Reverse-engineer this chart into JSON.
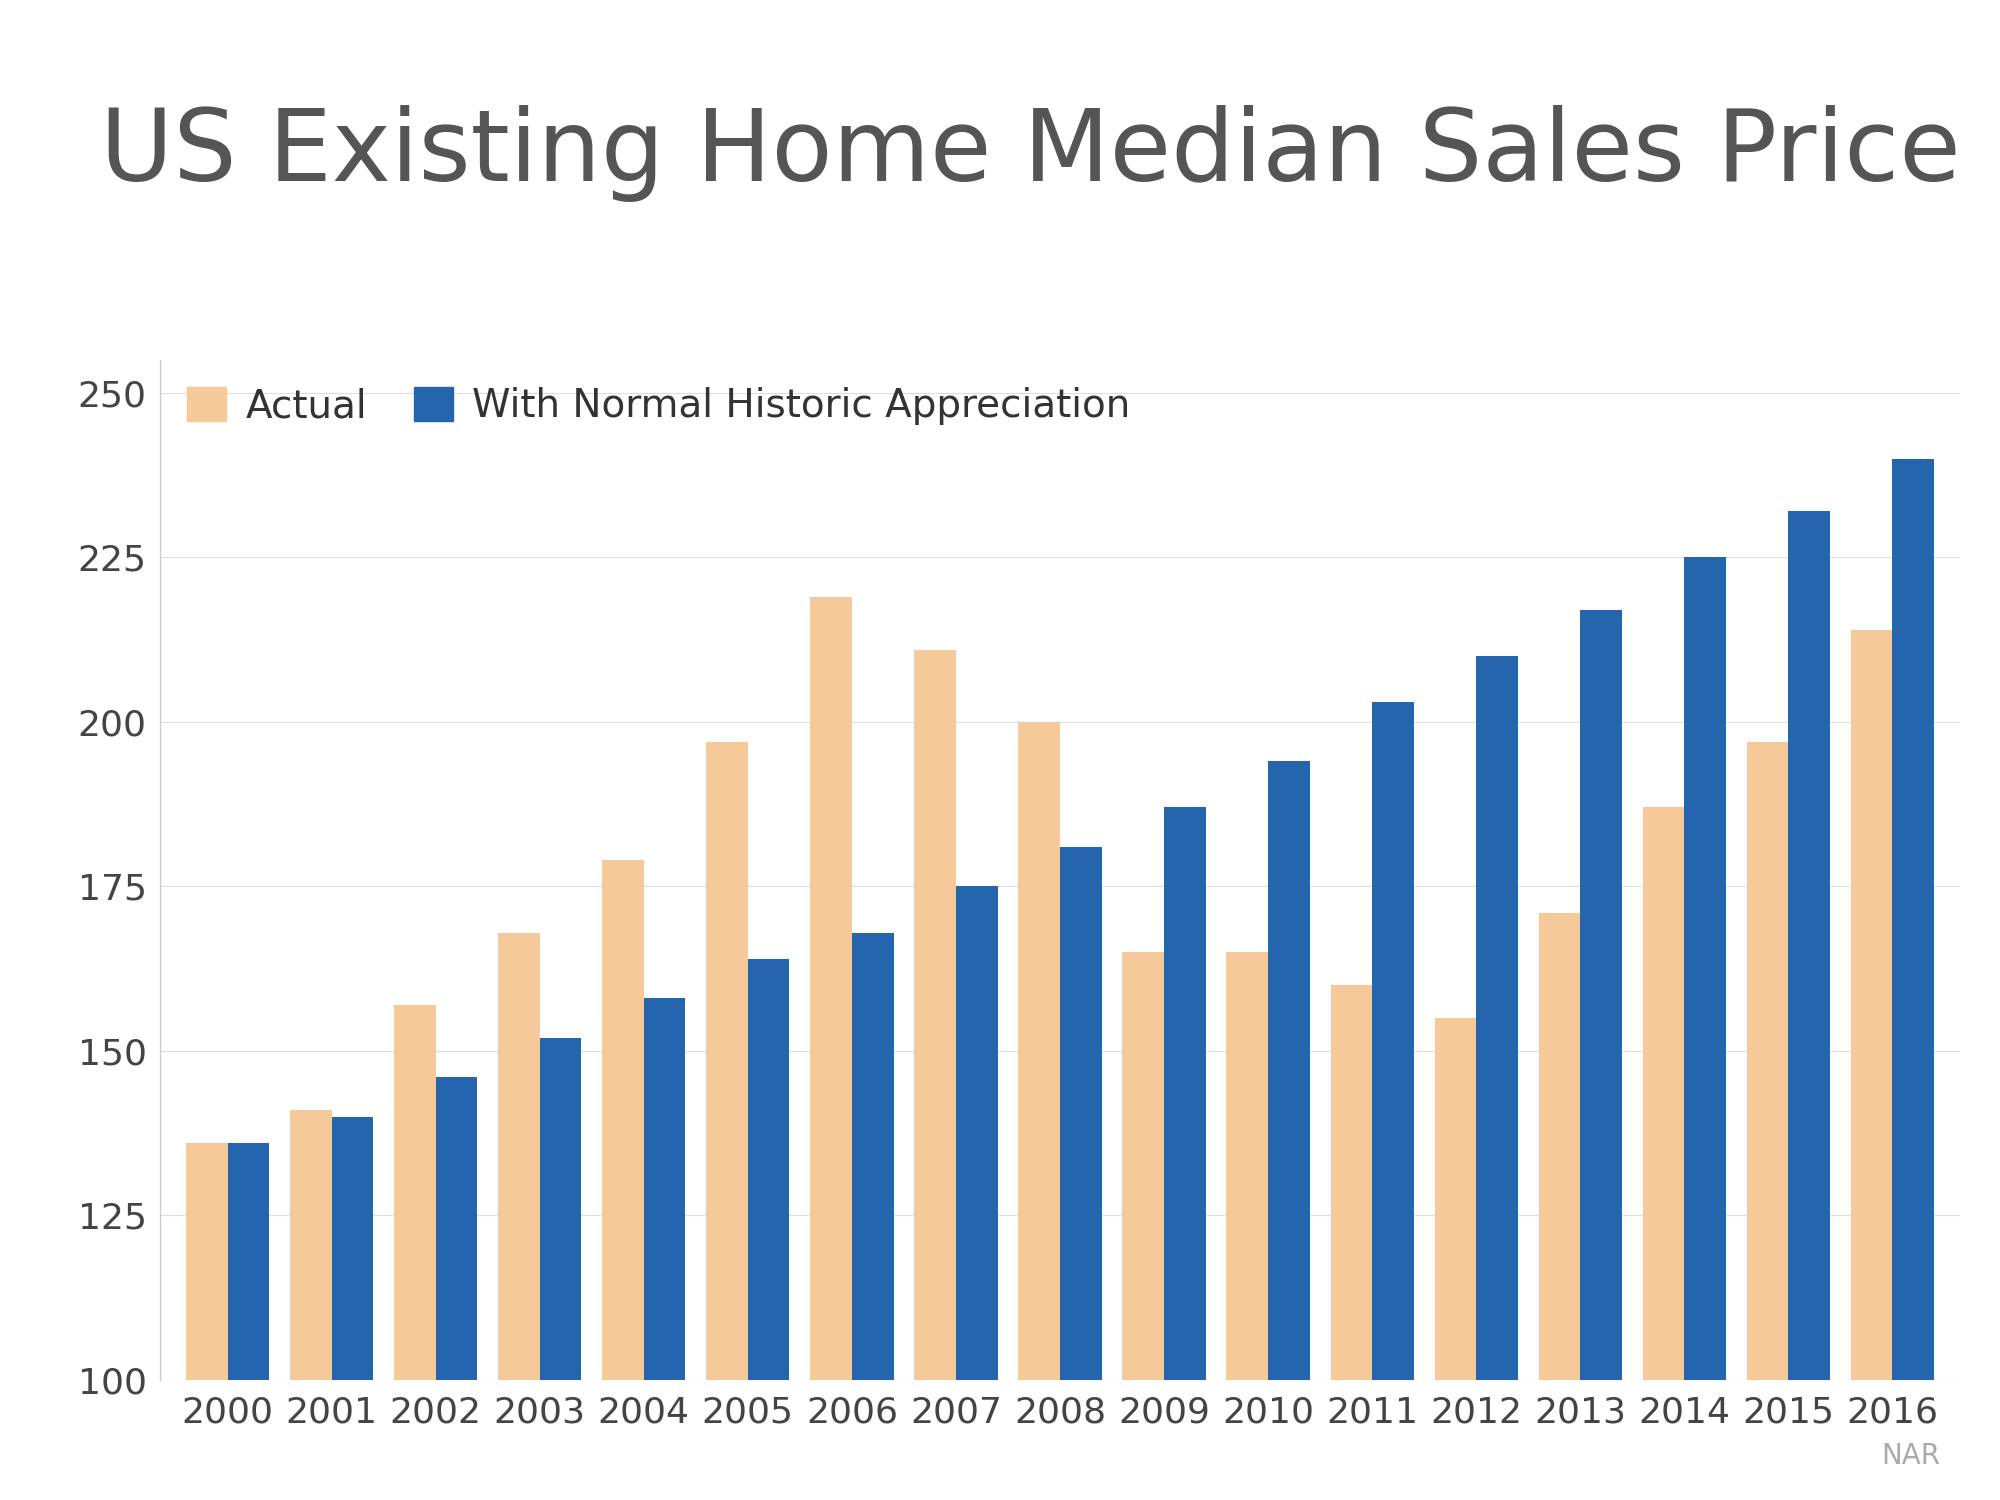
{
  "title": "US Existing Home Median Sales Price",
  "years": [
    2000,
    2001,
    2002,
    2003,
    2004,
    2005,
    2006,
    2007,
    2008,
    2009,
    2010,
    2011,
    2012,
    2013,
    2014,
    2015,
    2016
  ],
  "actual": [
    136,
    141,
    157,
    168,
    179,
    197,
    219,
    211,
    200,
    165,
    165,
    160,
    155,
    171,
    187,
    197,
    214
  ],
  "normal": [
    136,
    140,
    146,
    152,
    158,
    164,
    168,
    175,
    181,
    187,
    194,
    203,
    210,
    217,
    225,
    232,
    240
  ],
  "actual_color": "#F5C99A",
  "normal_color": "#2565AE",
  "background_color": "#FFFFFF",
  "legend_actual": "Actual",
  "legend_normal": "With Normal Historic Appreciation",
  "ylim_min": 100,
  "ylim_max": 255,
  "yticks": [
    100,
    125,
    150,
    175,
    200,
    225,
    250
  ],
  "title_fontsize": 72,
  "tick_fontsize": 26,
  "legend_fontsize": 28,
  "bar_width": 0.4,
  "source_label": "NAR",
  "source_fontsize": 20,
  "source_color": "#AAAAAA",
  "title_color": "#555555",
  "tick_color": "#444444"
}
